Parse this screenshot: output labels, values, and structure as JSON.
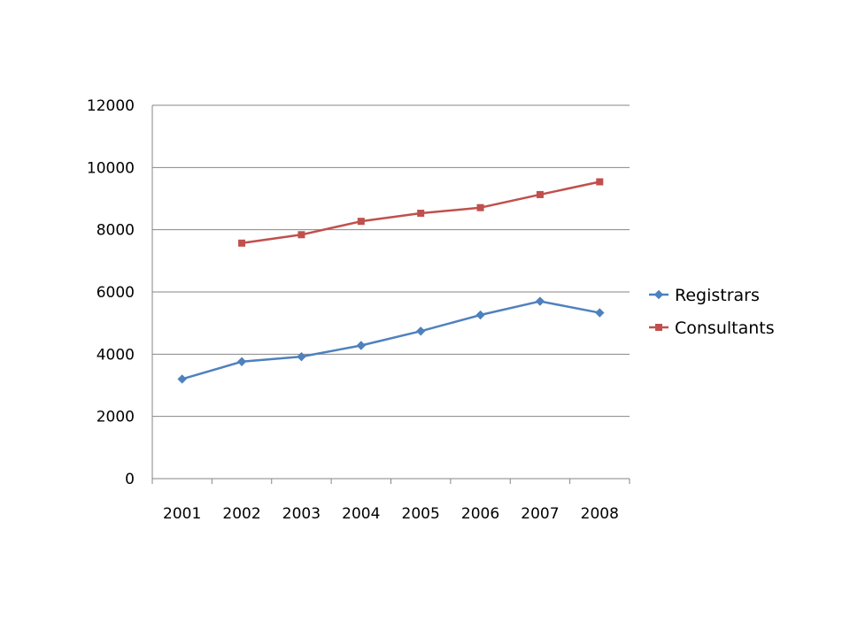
{
  "chart_data": {
    "type": "line",
    "title": "",
    "xlabel": "",
    "ylabel": "",
    "categories": [
      "2001",
      "2002",
      "2003",
      "2004",
      "2005",
      "2006",
      "2007",
      "2008"
    ],
    "ylim": [
      0,
      12000
    ],
    "yticks": [
      0,
      2000,
      4000,
      6000,
      8000,
      10000,
      12000
    ],
    "grid": "horizontal",
    "legend_position": "right",
    "series": [
      {
        "name": "Registrars",
        "color": "#4F81BD",
        "marker": "diamond",
        "values": [
          3200,
          3760,
          3920,
          4280,
          4740,
          5260,
          5700,
          5330
        ]
      },
      {
        "name": "Consultants",
        "color": "#C0504D",
        "marker": "square",
        "values": [
          null,
          7570,
          7840,
          8270,
          8530,
          8710,
          9130,
          9540
        ]
      }
    ]
  }
}
